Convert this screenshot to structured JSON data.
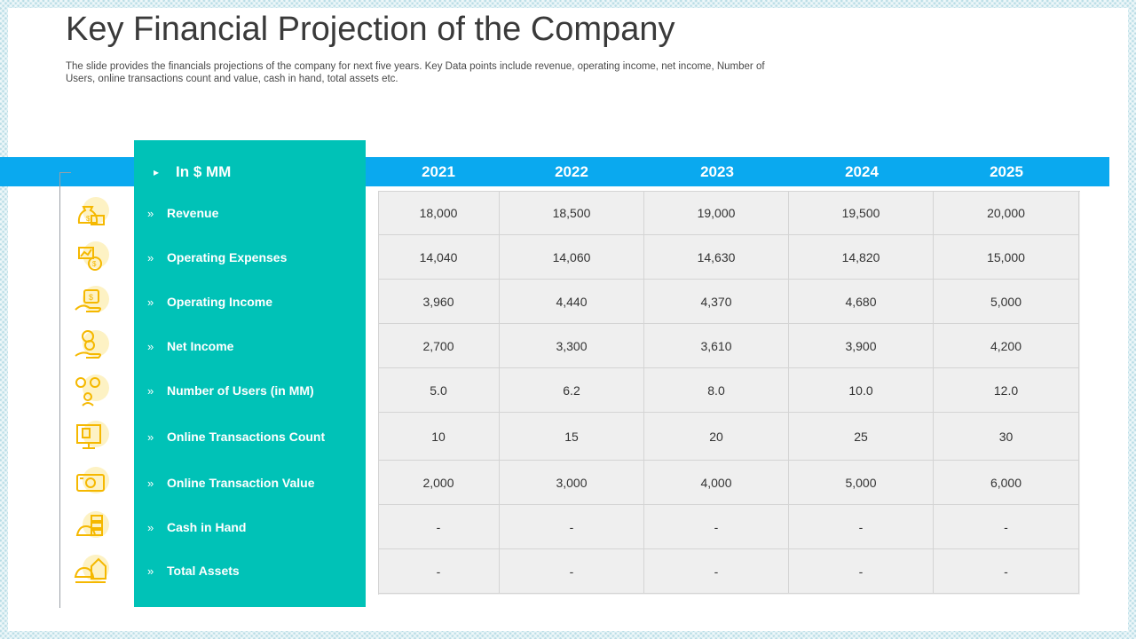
{
  "header": {
    "title": "Key Financial Projection of the Company",
    "subtitle": "The slide provides the financials projections of the company for next five years. Key Data points include revenue, operating income, net income, Number of Users, online transactions count and value, cash in hand, total assets etc."
  },
  "table": {
    "unit_label": "In $ MM",
    "years": [
      "2021",
      "2022",
      "2023",
      "2024",
      "2025"
    ],
    "rows": [
      {
        "label": "Revenue",
        "icon": "money-bag-icon",
        "values": [
          "18,000",
          "18,500",
          "19,000",
          "19,500",
          "20,000"
        ]
      },
      {
        "label": "Operating Expenses",
        "icon": "expenses-chart-coin-icon",
        "values": [
          "14,040",
          "14,060",
          "14,630",
          "14,820",
          "15,000"
        ]
      },
      {
        "label": "Operating Income",
        "icon": "hand-money-icon",
        "values": [
          "3,960",
          "4,440",
          "4,370",
          "4,680",
          "5,000"
        ]
      },
      {
        "label": "Net Income",
        "icon": "hand-coins-icon",
        "values": [
          "2,700",
          "3,300",
          "3,610",
          "3,900",
          "4,200"
        ]
      },
      {
        "label": "Number of Users (in MM)",
        "icon": "users-gear-icon",
        "values": [
          "5.0",
          "6.2",
          "8.0",
          "10.0",
          "12.0"
        ]
      },
      {
        "label": "Online Transactions Count",
        "icon": "monitor-icon",
        "values": [
          "10",
          "15",
          "20",
          "25",
          "30"
        ]
      },
      {
        "label": "Online Transaction Value",
        "icon": "cash-icon",
        "values": [
          "2,000",
          "3,000",
          "4,000",
          "5,000",
          "6,000"
        ]
      },
      {
        "label": "Cash in Hand",
        "icon": "coin-stack-icon",
        "values": [
          "-",
          "-",
          "-",
          "-",
          "-"
        ]
      },
      {
        "label": "Total Assets",
        "icon": "asset-house-icon",
        "values": [
          "-",
          "-",
          "-",
          "-",
          "-"
        ]
      }
    ]
  },
  "style": {
    "band_color": "#0aa9ef",
    "teal_color": "#00c2b7",
    "icon_color": "#f5b800"
  }
}
